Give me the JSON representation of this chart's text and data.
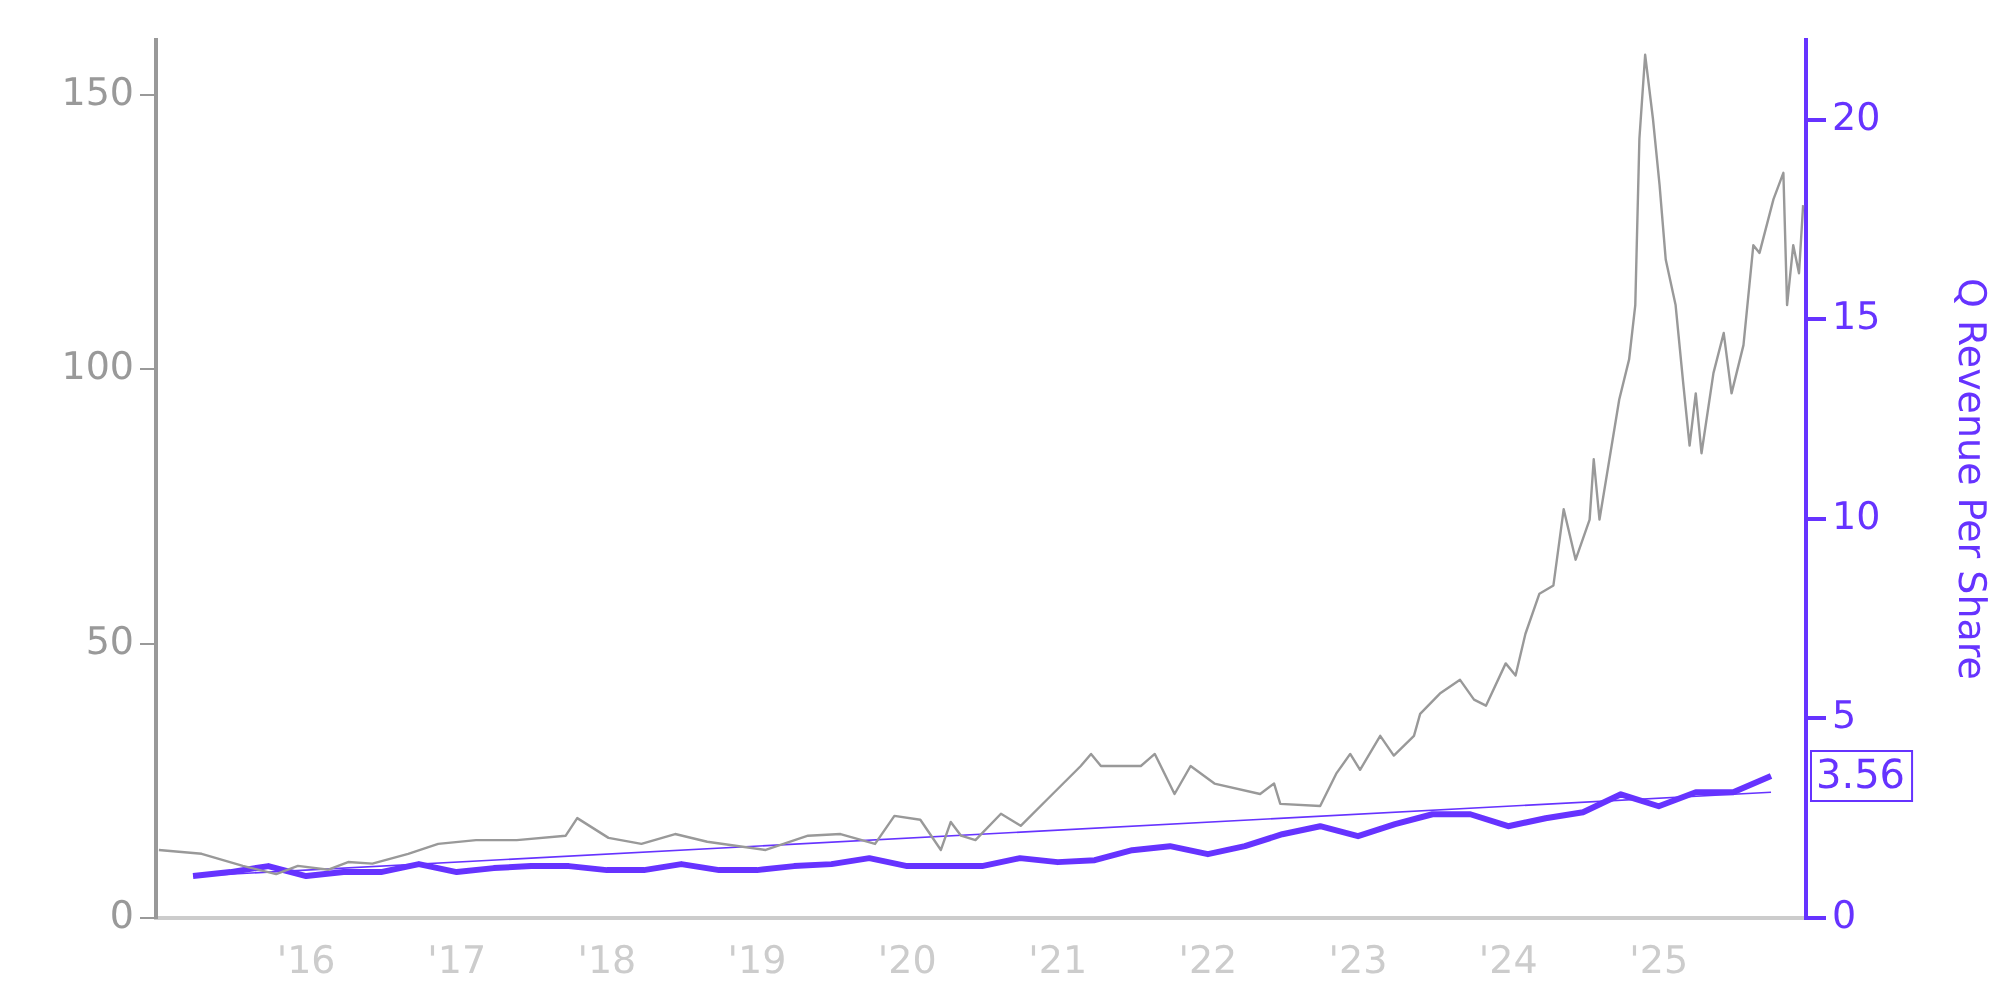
{
  "chart_data": {
    "type": "line",
    "y2label": "Q Revenue Per Share",
    "xlim": [
      "2015-01-01",
      "2025-12-25"
    ],
    "xticks": [
      {
        "value": "2016-01-01",
        "label": "'16"
      },
      {
        "value": "2017-01-01",
        "label": "'17"
      },
      {
        "value": "2018-01-01",
        "label": "'18"
      },
      {
        "value": "2019-01-01",
        "label": "'19"
      },
      {
        "value": "2020-01-01",
        "label": "'20"
      },
      {
        "value": "2021-01-01",
        "label": "'21"
      },
      {
        "value": "2022-01-01",
        "label": "'22"
      },
      {
        "value": "2023-01-01",
        "label": "'23"
      },
      {
        "value": "2024-01-01",
        "label": "'24"
      },
      {
        "value": "2025-01-01",
        "label": "'25"
      }
    ],
    "ylim": [
      0,
      160
    ],
    "yticks": [
      0,
      50,
      100,
      150
    ],
    "y2lim": [
      0,
      22
    ],
    "y2ticks": [
      0,
      5,
      10,
      15,
      20
    ],
    "grid": false,
    "legend": false,
    "series": [
      {
        "color": "#999999",
        "axis": "y",
        "x": [
          "2015-01-08",
          "2015-04-22",
          "2015-07-31",
          "2015-10-20",
          "2015-12-12",
          "2016-02-24",
          "2016-04-12",
          "2016-06-10",
          "2016-09-05",
          "2016-11-17",
          "2017-02-17",
          "2017-05-27",
          "2017-09-23",
          "2017-10-21",
          "2018-01-05",
          "2018-03-26",
          "2018-06-16",
          "2018-09-02",
          "2019-01-22",
          "2019-05-05",
          "2019-07-23",
          "2019-10-15",
          "2019-12-01",
          "2020-02-02",
          "2020-03-23",
          "2020-04-16",
          "2020-05-11",
          "2020-06-15",
          "2020-08-16",
          "2020-10-03",
          "2020-12-05",
          "2021-02-26",
          "2021-03-23",
          "2021-04-16",
          "2021-07-22",
          "2021-08-25",
          "2021-10-12",
          "2021-11-20",
          "2022-01-17",
          "2022-05-08",
          "2022-06-11",
          "2022-06-26",
          "2022-10-01",
          "2022-11-09",
          "2022-12-13",
          "2023-01-06",
          "2023-02-24",
          "2023-03-29",
          "2023-05-17",
          "2023-06-01",
          "2023-07-19",
          "2023-09-06",
          "2023-10-10",
          "2023-11-08",
          "2023-12-26",
          "2024-01-19",
          "2024-02-12",
          "2024-03-17",
          "2024-04-20",
          "2024-05-15",
          "2024-06-13",
          "2024-07-17",
          "2024-07-27",
          "2024-08-10",
          "2024-09-27",
          "2024-10-21",
          "2024-11-05",
          "2024-11-15",
          "2024-11-29",
          "2024-12-18",
          "2025-01-03",
          "2025-01-18",
          "2025-02-11",
          "2025-03-02",
          "2025-03-17",
          "2025-04-01",
          "2025-04-15",
          "2025-05-14",
          "2025-06-08",
          "2025-06-27",
          "2025-07-26",
          "2025-08-19",
          "2025-09-03",
          "2025-10-07",
          "2025-10-31",
          "2025-11-09",
          "2025-11-24",
          "2025-12-08",
          "2025-12-18"
        ],
        "values": [
          12.4,
          11.7,
          9.5,
          8.0,
          9.5,
          8.8,
          10.2,
          9.9,
          11.7,
          13.5,
          14.2,
          14.2,
          15.0,
          18.2,
          14.6,
          13.5,
          15.3,
          13.9,
          12.4,
          15.0,
          15.3,
          13.5,
          18.6,
          17.9,
          12.4,
          17.5,
          15.0,
          14.2,
          19.0,
          16.8,
          21.5,
          27.7,
          29.9,
          27.7,
          27.7,
          29.9,
          22.6,
          27.7,
          24.5,
          22.6,
          24.5,
          20.8,
          20.4,
          26.3,
          29.9,
          27.0,
          33.2,
          29.6,
          33.2,
          37.2,
          40.9,
          43.4,
          39.8,
          38.7,
          46.4,
          44.2,
          51.8,
          59.1,
          60.6,
          74.5,
          65.3,
          72.6,
          83.6,
          72.6,
          94.5,
          101.8,
          111.7,
          142,
          157.3,
          145.6,
          133.6,
          120,
          111.7,
          97.1,
          86.1,
          95.6,
          84.7,
          99.3,
          106.6,
          95.6,
          104.4,
          122.6,
          121.2,
          131,
          135.8,
          111.7,
          122.6,
          117.5,
          129.9
        ]
      },
      {
        "color": "#6633ff",
        "axis": "y2",
        "x": [
          "2015-04",
          "2015-07",
          "2015-10",
          "2016-01",
          "2016-04",
          "2016-07",
          "2016-10",
          "2017-01",
          "2017-04",
          "2017-07",
          "2017-10",
          "2018-01",
          "2018-04",
          "2018-07",
          "2018-10",
          "2019-01",
          "2019-04",
          "2019-07",
          "2019-10",
          "2020-01",
          "2020-04",
          "2020-07",
          "2020-10",
          "2021-01",
          "2021-04",
          "2021-07",
          "2021-10",
          "2022-01",
          "2022-04",
          "2022-07",
          "2022-10",
          "2023-01",
          "2023-04",
          "2023-07",
          "2023-10",
          "2024-01",
          "2024-04",
          "2024-07",
          "2024-10",
          "2025-01",
          "2025-04",
          "2025-07",
          "2025-10"
        ],
        "values": [
          1.05,
          1.15,
          1.3,
          1.05,
          1.15,
          1.15,
          1.35,
          1.15,
          1.25,
          1.3,
          1.3,
          1.2,
          1.2,
          1.35,
          1.2,
          1.2,
          1.3,
          1.35,
          1.5,
          1.3,
          1.3,
          1.3,
          1.5,
          1.4,
          1.45,
          1.7,
          1.8,
          1.6,
          1.8,
          2.1,
          2.3,
          2.05,
          2.35,
          2.6,
          2.6,
          2.3,
          2.5,
          2.65,
          3.1,
          2.8,
          3.15,
          3.15,
          3.56
        ],
        "value_labels": [
          null,
          null,
          null,
          null,
          null,
          null,
          null,
          null,
          null,
          null,
          null,
          null,
          null,
          null,
          null,
          null,
          null,
          null,
          null,
          null,
          null,
          null,
          null,
          null,
          null,
          null,
          null,
          null,
          null,
          null,
          null,
          null,
          null,
          null,
          null,
          null,
          null,
          null,
          null,
          null,
          null,
          null,
          "3.56"
        ]
      },
      {
        "color": "#6633ff",
        "axis": "y2",
        "x": [
          "2015-04",
          "2025-10"
        ],
        "values": [
          1.05,
          3.15
        ]
      }
    ]
  }
}
